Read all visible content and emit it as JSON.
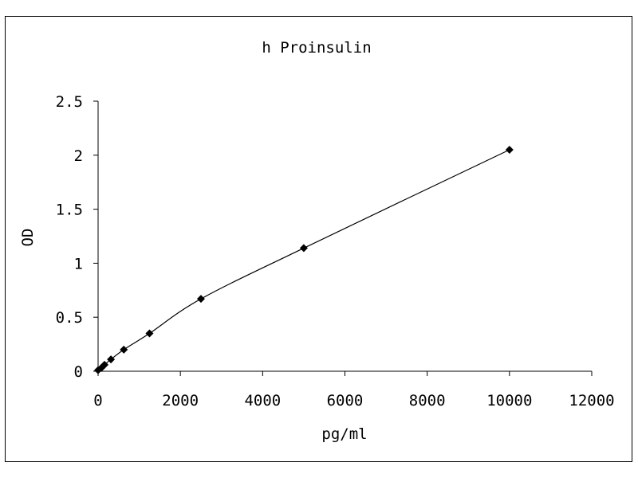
{
  "chart_data": {
    "type": "scatter",
    "title": "h Proinsulin",
    "xlabel": "pg/ml",
    "ylabel": "OD",
    "xlim": [
      0,
      12000
    ],
    "ylim": [
      0,
      2.5
    ],
    "xticks": [
      "0",
      "2000",
      "4000",
      "6000",
      "8000",
      "10000",
      "12000"
    ],
    "yticks": [
      "0",
      "0.5",
      "1",
      "1.5",
      "2",
      "2.5"
    ],
    "grid": false,
    "legend": "none",
    "series": [
      {
        "marker": "diamond",
        "trendline": true,
        "x": [
          0,
          78,
          156,
          312,
          625,
          1250,
          2500,
          5000,
          10000
        ],
        "y": [
          0.01,
          0.03,
          0.06,
          0.11,
          0.2,
          0.35,
          0.67,
          1.14,
          2.05
        ]
      }
    ],
    "colors": {
      "marker": "#000000",
      "line": "#000000",
      "background": "#ffffff"
    }
  }
}
